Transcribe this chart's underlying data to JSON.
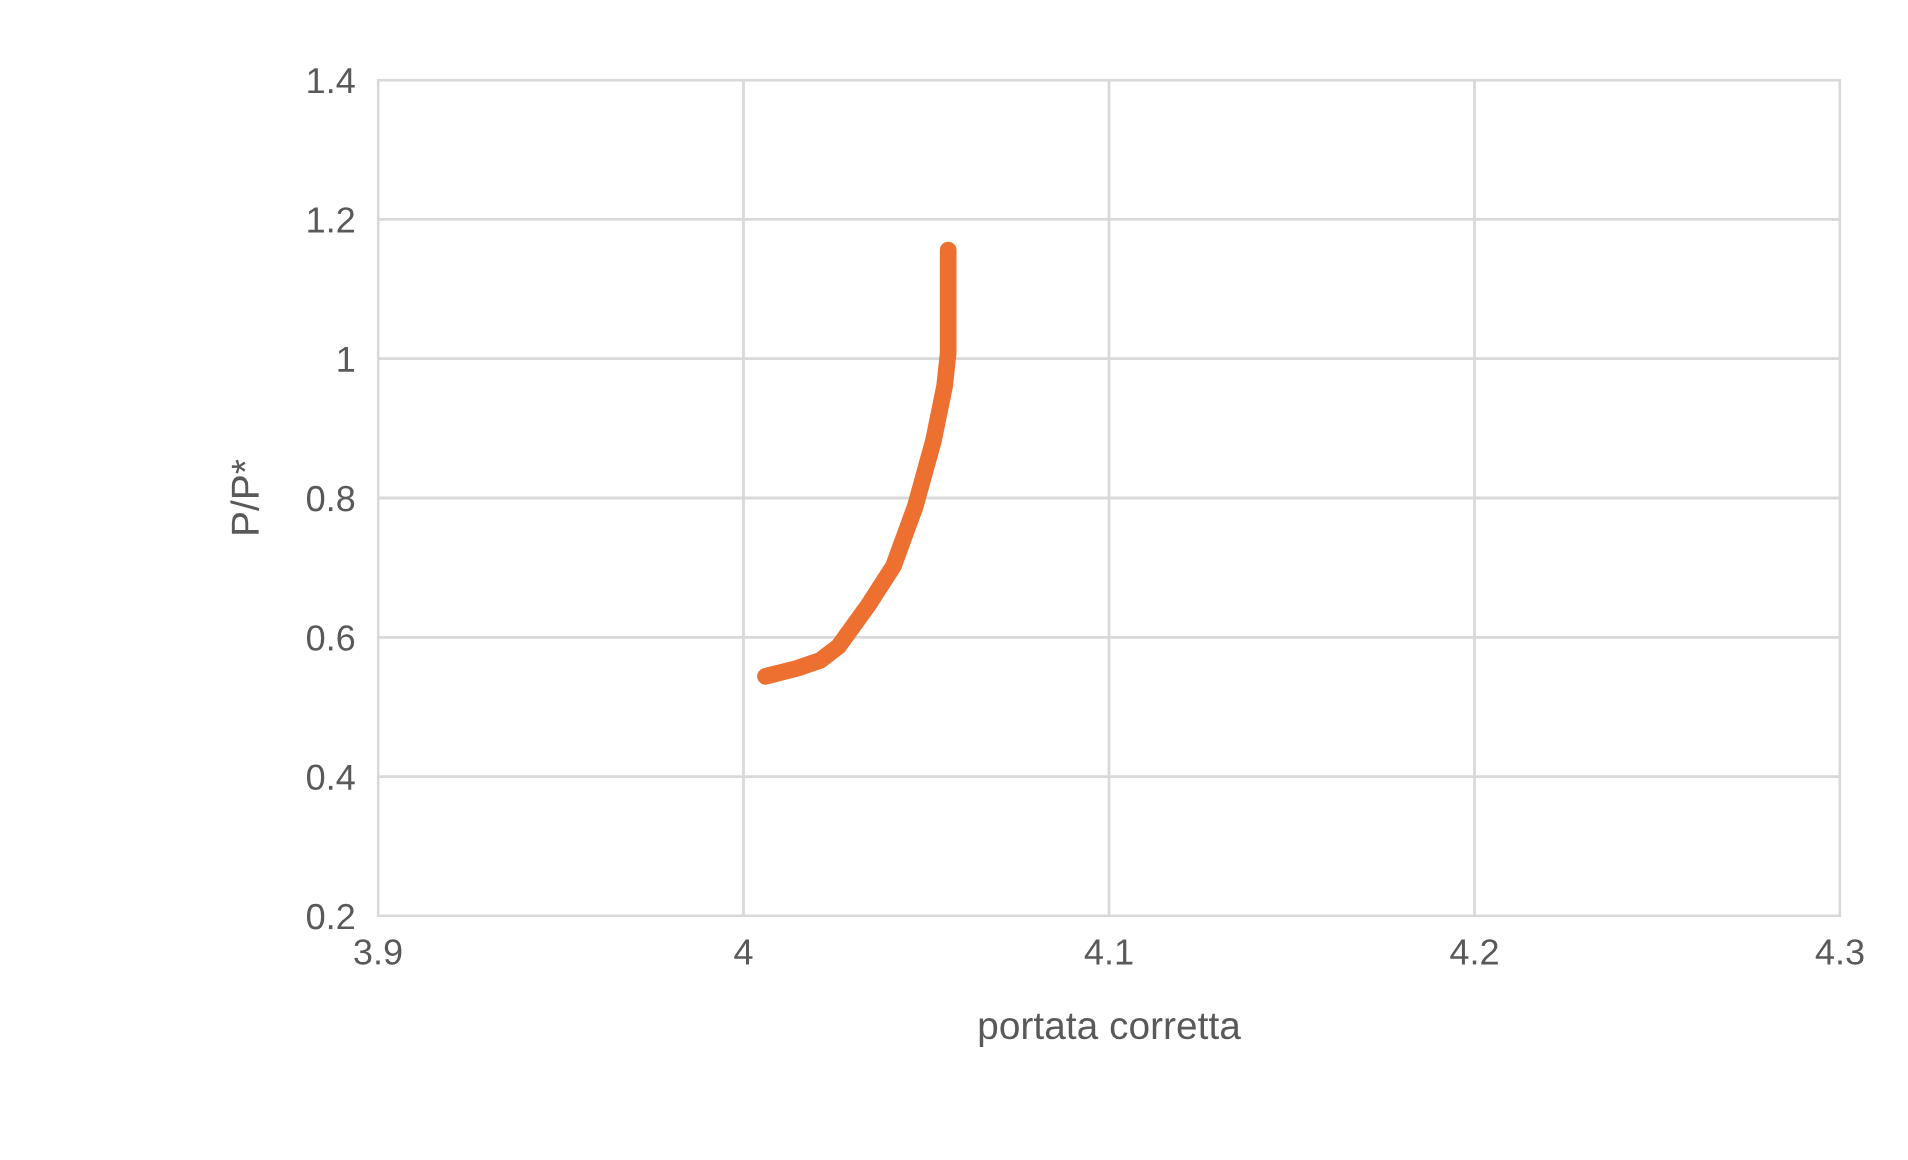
{
  "chart_data": {
    "type": "line",
    "xlabel": "portata corretta",
    "ylabel": "P/P*",
    "series": [
      {
        "color": "#ed7030",
        "x": [
          4.006,
          4.015,
          4.021,
          4.026,
          4.034,
          4.041,
          4.047,
          4.052,
          4.055,
          4.056,
          4.056,
          4.056
        ],
        "values": [
          0.544,
          0.556,
          0.567,
          0.587,
          0.645,
          0.702,
          0.788,
          0.883,
          0.96,
          1.008,
          1.08,
          1.156
        ]
      }
    ],
    "xlim": [
      3.9,
      4.3
    ],
    "xticks": [
      3.9,
      4,
      4.1,
      4.2,
      4.3
    ],
    "ylim": [
      0.2,
      1.4
    ],
    "yticks": [
      0.2,
      0.4,
      0.6,
      0.8,
      1,
      1.2,
      1.4
    ],
    "grid": true,
    "marker": "none",
    "line_style": "solid"
  }
}
